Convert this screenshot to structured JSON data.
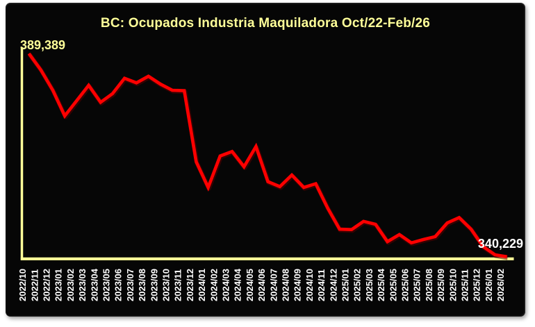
{
  "colors": {
    "page_background": "#FFFFFF",
    "frame_background": "#060606",
    "accent_yellow": "#FFFF99",
    "series_red": "#FF0000",
    "tick_label_white": "#FFFFFF"
  },
  "chart_data": {
    "type": "line",
    "title": "BC: Ocupados Industria Maquiladora Oct/22-Feb/26",
    "xlabel": "",
    "ylabel": "",
    "grid": false,
    "legend": "none",
    "plot_background": "#000000",
    "axis_color": "#FFFF99",
    "tick_label_color": "#FFFFFF",
    "ylim": [
      339700,
      389400
    ],
    "categories": [
      "2022/10",
      "2022/11",
      "2022/12",
      "2023/01",
      "2023/02",
      "2023/03",
      "2023/04",
      "2023/05",
      "2023/06",
      "2023/07",
      "2023/08",
      "2023/09",
      "2023/10",
      "2023/11",
      "2023/12",
      "2024/01",
      "2024/02",
      "2024/03",
      "2024/04",
      "2024/05",
      "2024/06",
      "2024/07",
      "2024/08",
      "2024/09",
      "2024/10",
      "2024/11",
      "2024/12",
      "2025/01",
      "2025/02",
      "2025/03",
      "2025/04",
      "2025/05",
      "2025/06",
      "2025/07",
      "2025/08",
      "2025/09",
      "2025/10",
      "2025/11",
      "2025/12",
      "2026/01",
      "2026/02"
    ],
    "series": [
      {
        "name": "Ocupados Industria Maquiladora",
        "color": "#FF0000",
        "values": [
          389389,
          385400,
          380500,
          374300,
          378000,
          381700,
          377600,
          379700,
          383400,
          382300,
          383900,
          382000,
          380500,
          380400,
          363200,
          357000,
          364600,
          365700,
          362000,
          366900,
          358400,
          357200,
          360000,
          357000,
          357900,
          352000,
          346900,
          346800,
          348800,
          348100,
          343900,
          345600,
          343600,
          344400,
          345100,
          348400,
          349700,
          346900,
          342700,
          340700,
          340229
        ]
      }
    ],
    "annotations": [
      {
        "point": "2022/10",
        "text": "389,389",
        "color": "#FFFF99"
      },
      {
        "point": "2026/02",
        "text": "340,229",
        "color": "#FFFFFF"
      }
    ]
  }
}
